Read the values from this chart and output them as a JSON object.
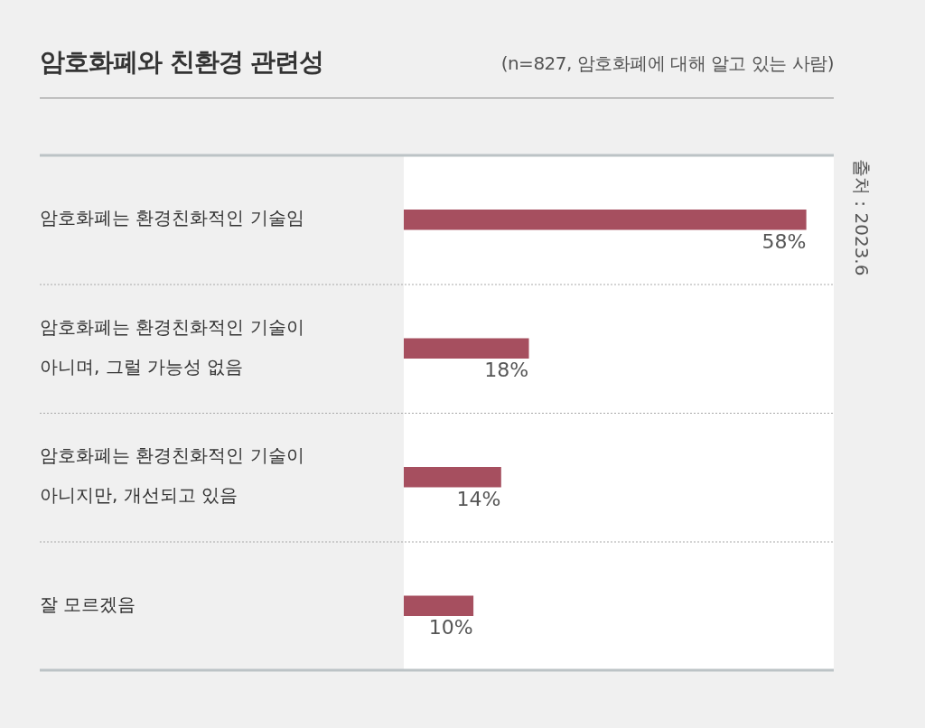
{
  "chart_data": {
    "type": "bar",
    "orientation": "horizontal",
    "title": "암호화폐와 친환경 관련성",
    "subtitle": "(n=827, 암호화폐에 대해 알고 있는 사람)",
    "categories": [
      "암호화폐는 환경친화적인 기술임",
      "암호화폐는 환경친화적인 기술이 아니며, 그럴 가능성 없음",
      "암호화폐는 환경친화적인 기술이 아니지만, 개선되고 있음",
      "잘 모르겠음"
    ],
    "values": [
      58,
      18,
      14,
      10
    ],
    "value_labels": [
      "58%",
      "18%",
      "14%",
      "10%"
    ],
    "color": "#a64f5f",
    "xlim": [
      0,
      62
    ],
    "grid": "y",
    "annotations": [
      "출처 : 2023.6"
    ]
  }
}
